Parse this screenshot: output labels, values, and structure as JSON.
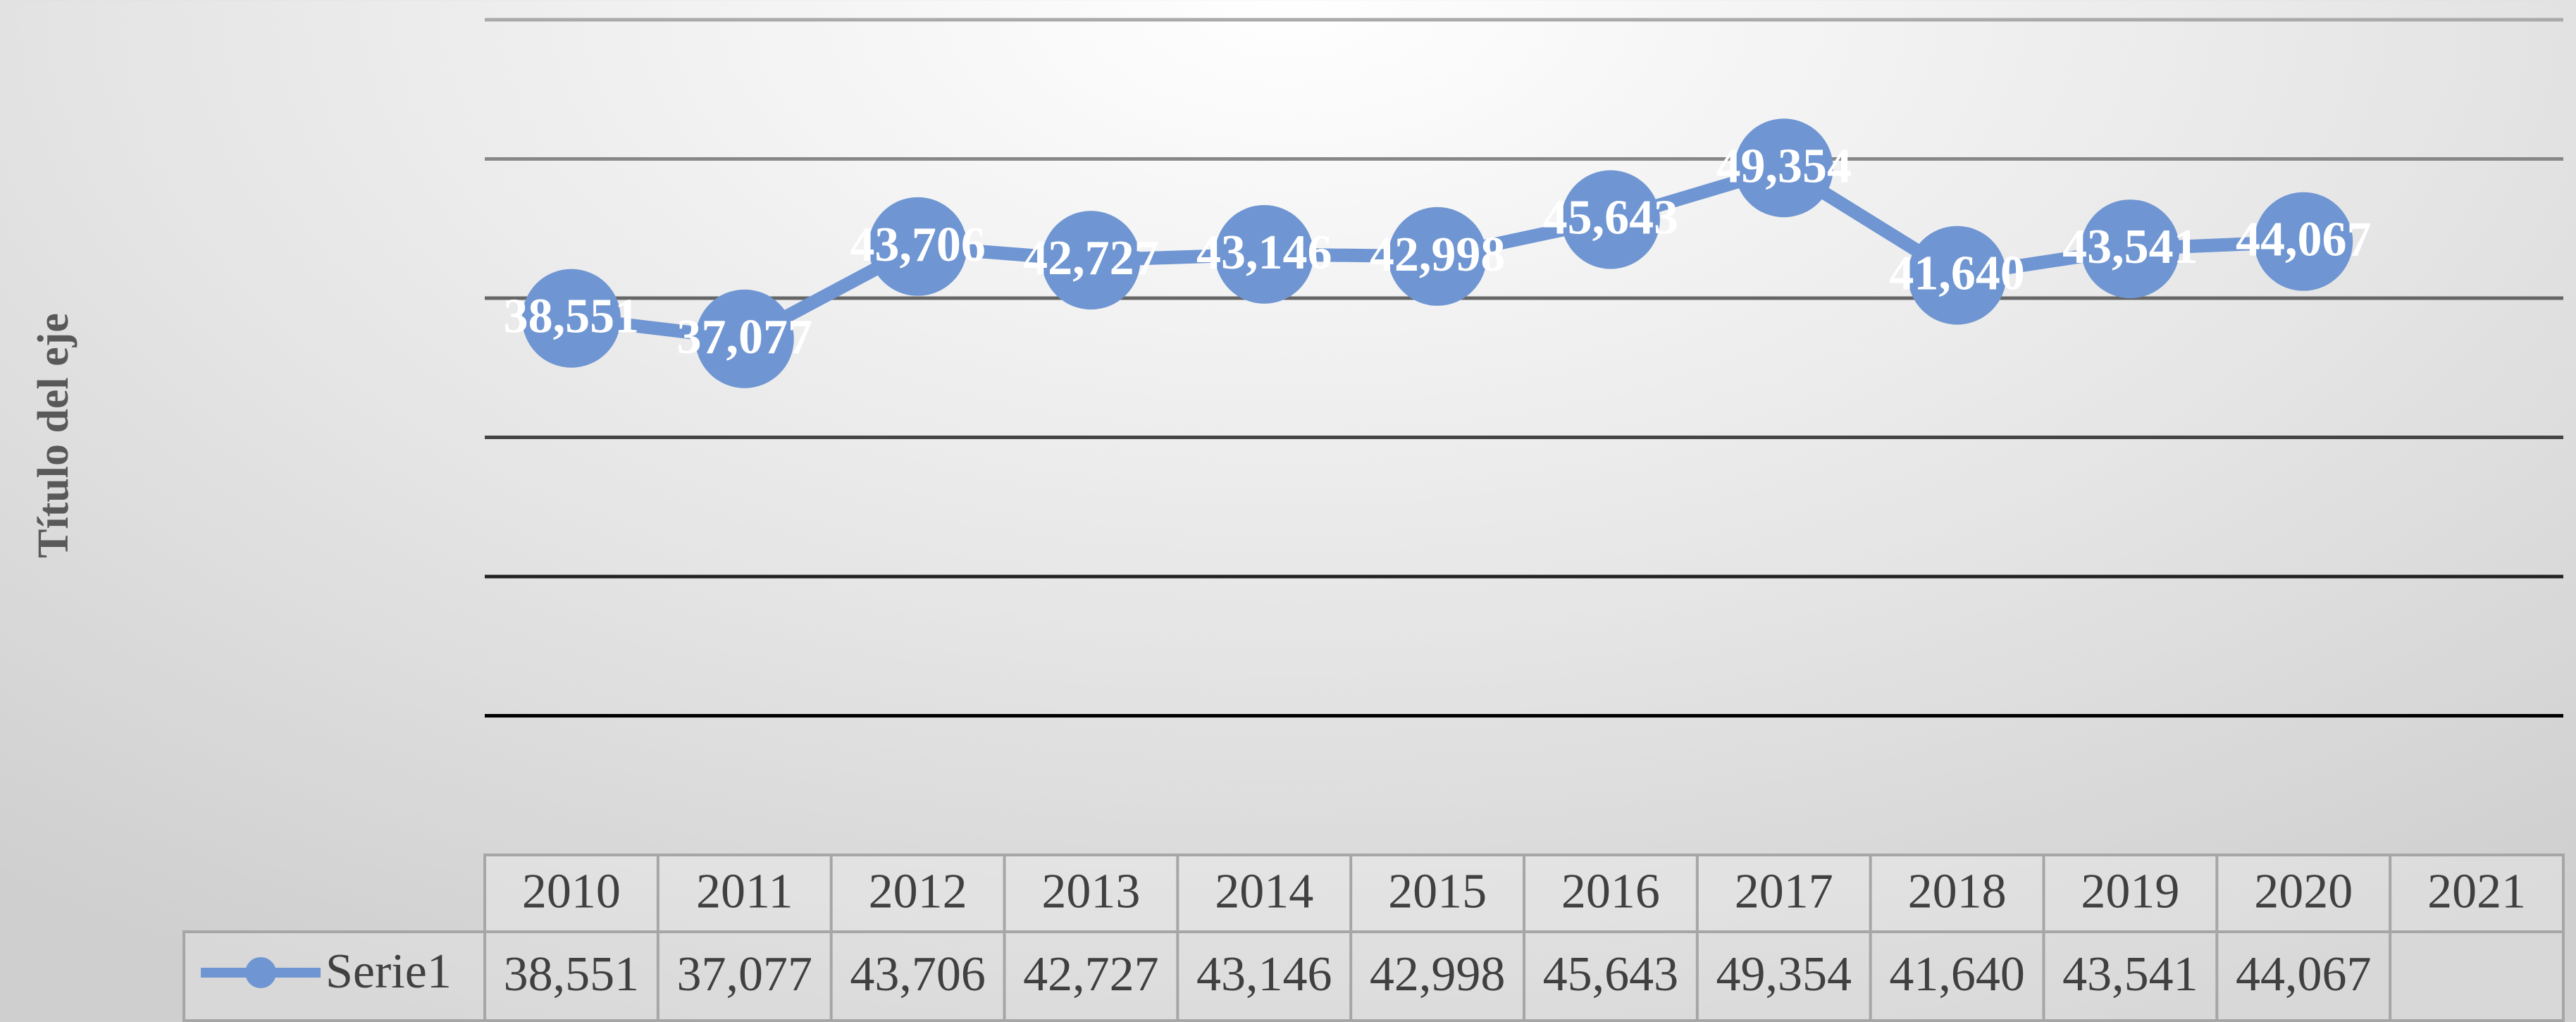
{
  "chart_data": {
    "type": "line",
    "y_title": "Título del eje",
    "categories": [
      "2010",
      "2011",
      "2012",
      "2013",
      "2014",
      "2015",
      "2016",
      "2017",
      "2018",
      "2019",
      "2020",
      "2021"
    ],
    "series": [
      {
        "name": "Serie1",
        "color": "#6f96d2",
        "values": [
          38551,
          37077,
          43706,
          42727,
          43146,
          42998,
          45643,
          49354,
          41640,
          43541,
          44067,
          null
        ],
        "value_labels": [
          "38,551",
          "37,077",
          "43,706",
          "42,727",
          "43,146",
          "42,998",
          "45,643",
          "49,354",
          "41,640",
          "43,541",
          "44,067",
          null
        ]
      }
    ],
    "ylim": [
      0,
      60000
    ],
    "yticks": [
      10000,
      20000,
      30000,
      40000,
      50000,
      60000
    ],
    "grid": true,
    "data_table": true
  }
}
